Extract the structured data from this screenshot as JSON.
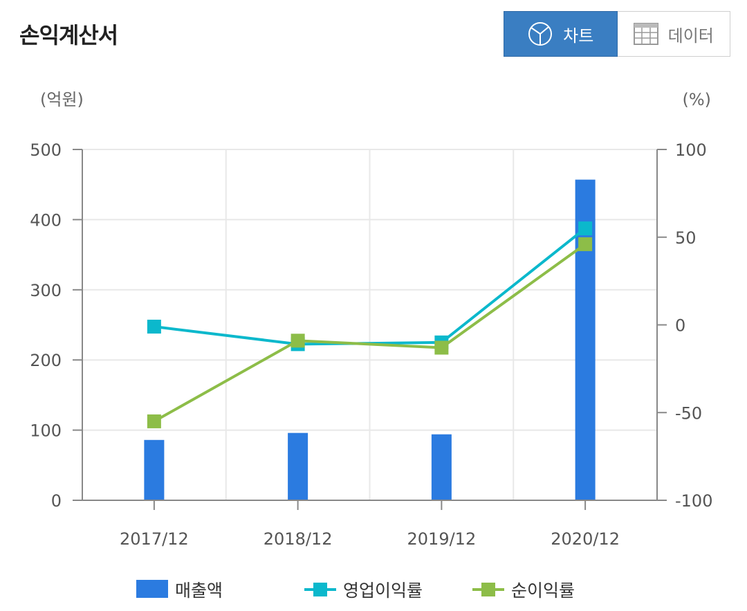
{
  "header": {
    "title": "손익계산서",
    "toggle": [
      {
        "label": "차트",
        "icon": "pie-chart-icon",
        "active": true
      },
      {
        "label": "데이터",
        "icon": "table-grid-icon",
        "active": false
      }
    ]
  },
  "chart_data": {
    "type": "bar",
    "categories": [
      "2017/12",
      "2018/12",
      "2019/12",
      "2020/12"
    ],
    "left_unit": "(억원)",
    "right_unit": "(%)",
    "left_axis": {
      "min": 0,
      "max": 500,
      "ticks": [
        0,
        100,
        200,
        300,
        400,
        500
      ]
    },
    "right_axis": {
      "min": -100,
      "max": 100,
      "ticks": [
        -100,
        -50,
        0,
        50,
        100
      ]
    },
    "grid": true,
    "legend_position": "bottom",
    "series": [
      {
        "name": "매출액",
        "type": "bar",
        "axis": "left",
        "color": "#2b7be0",
        "values": [
          86,
          96,
          94,
          457
        ]
      },
      {
        "name": "영업이익률",
        "type": "line",
        "axis": "right",
        "color": "#0bb8cc",
        "values": [
          -1,
          -11,
          -10,
          55
        ]
      },
      {
        "name": "순이익률",
        "type": "line",
        "axis": "right",
        "color": "#8dbd48",
        "values": [
          -55,
          -9,
          -13,
          46
        ]
      }
    ]
  }
}
